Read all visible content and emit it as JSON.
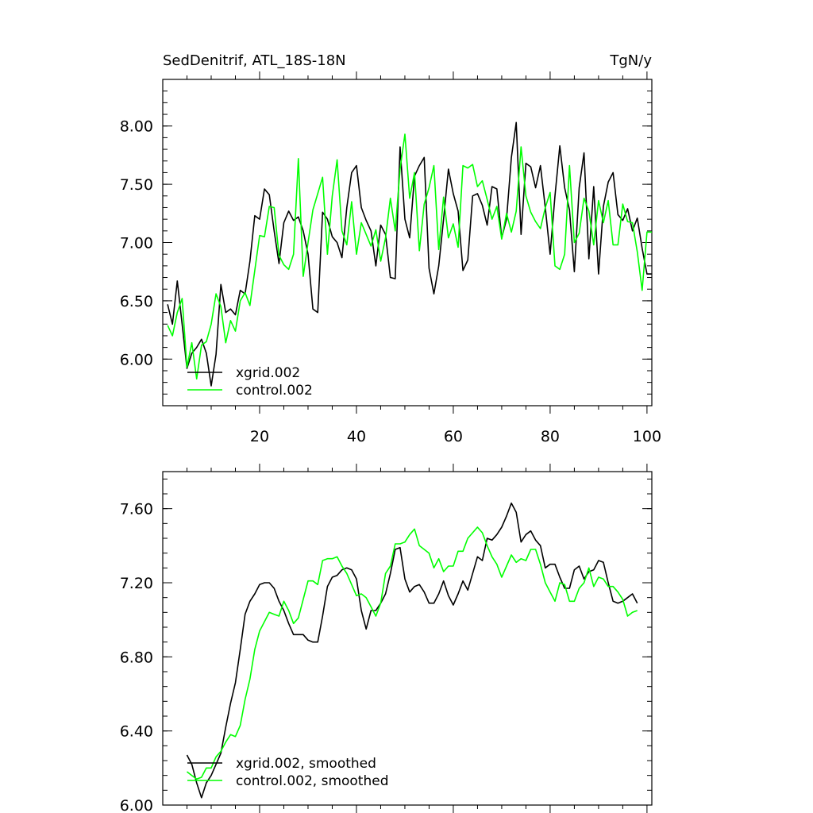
{
  "chart_data": [
    {
      "type": "line",
      "title": "SedDenitrif, ATL_18S-18N",
      "units": "TgN/y",
      "xlim": [
        0,
        101
      ],
      "ylim": [
        5.6,
        8.4
      ],
      "xticks": [
        20,
        40,
        60,
        80,
        100
      ],
      "xtick_labels": [
        "20",
        "40",
        "60",
        "80",
        "100"
      ],
      "yticks": [
        6.0,
        6.5,
        7.0,
        7.5,
        8.0
      ],
      "ytick_labels": [
        "6.00",
        "6.50",
        "7.00",
        "7.50",
        "8.00"
      ],
      "legend_position": "bottom-left",
      "series": [
        {
          "name": "xgrid.002",
          "color": "#000000",
          "x": [
            1,
            2,
            3,
            4,
            5,
            6,
            7,
            8,
            9,
            10,
            11,
            12,
            13,
            14,
            15,
            16,
            17,
            18,
            19,
            20,
            21,
            22,
            23,
            24,
            25,
            26,
            27,
            28,
            29,
            30,
            31,
            32,
            33,
            34,
            35,
            36,
            37,
            38,
            39,
            40,
            41,
            42,
            43,
            44,
            45,
            46,
            47,
            48,
            49,
            50,
            51,
            52,
            53,
            54,
            55,
            56,
            57,
            58,
            59,
            60,
            61,
            62,
            63,
            64,
            65,
            66,
            67,
            68,
            69,
            70,
            71,
            72,
            73,
            74,
            75,
            76,
            77,
            78,
            79,
            80,
            81,
            82,
            83,
            84,
            85,
            86,
            87,
            88,
            89,
            90,
            91,
            92,
            93,
            94,
            95,
            96,
            97,
            98,
            99,
            100,
            101
          ],
          "y": [
            6.47,
            6.3,
            6.67,
            6.3,
            5.92,
            6.05,
            6.1,
            6.17,
            6.05,
            5.77,
            6.04,
            6.64,
            6.4,
            6.43,
            6.38,
            6.59,
            6.56,
            6.84,
            7.23,
            7.2,
            7.46,
            7.41,
            7.1,
            6.82,
            7.17,
            7.27,
            7.19,
            7.22,
            7.1,
            6.9,
            6.43,
            6.4,
            7.26,
            7.2,
            7.05,
            7.0,
            6.87,
            7.3,
            7.6,
            7.66,
            7.3,
            7.19,
            7.1,
            6.8,
            7.15,
            7.07,
            6.7,
            6.69,
            7.82,
            7.2,
            7.04,
            7.57,
            7.66,
            7.73,
            6.78,
            6.56,
            6.8,
            7.2,
            7.63,
            7.42,
            7.27,
            6.76,
            6.85,
            7.4,
            7.42,
            7.32,
            7.15,
            7.48,
            7.46,
            7.04,
            7.2,
            7.73,
            8.03,
            7.07,
            7.68,
            7.65,
            7.47,
            7.66,
            7.3,
            6.9,
            7.4,
            7.83,
            7.47,
            7.28,
            6.75,
            7.47,
            7.77,
            6.86,
            7.48,
            6.73,
            7.31,
            7.52,
            7.6,
            7.24,
            7.19,
            7.29,
            7.1,
            7.21,
            6.95,
            6.73,
            6.73
          ]
        },
        {
          "name": "control.002",
          "color": "#00ff00",
          "x": [
            1,
            2,
            3,
            4,
            5,
            6,
            7,
            8,
            9,
            10,
            11,
            12,
            13,
            14,
            15,
            16,
            17,
            18,
            19,
            20,
            21,
            22,
            23,
            24,
            25,
            26,
            27,
            28,
            29,
            30,
            31,
            32,
            33,
            34,
            35,
            36,
            37,
            38,
            39,
            40,
            41,
            42,
            43,
            44,
            45,
            46,
            47,
            48,
            49,
            50,
            51,
            52,
            53,
            54,
            55,
            56,
            57,
            58,
            59,
            60,
            61,
            62,
            63,
            64,
            65,
            66,
            67,
            68,
            69,
            70,
            71,
            72,
            73,
            74,
            75,
            76,
            77,
            78,
            79,
            80,
            81,
            82,
            83,
            84,
            85,
            86,
            87,
            88,
            89,
            90,
            91,
            92,
            93,
            94,
            95,
            96,
            97,
            98,
            99,
            100,
            101
          ],
          "y": [
            6.29,
            6.2,
            6.4,
            6.52,
            5.93,
            6.14,
            5.83,
            6.12,
            6.15,
            6.3,
            6.56,
            6.45,
            6.14,
            6.33,
            6.24,
            6.5,
            6.57,
            6.46,
            6.76,
            7.06,
            7.05,
            7.31,
            7.3,
            6.89,
            6.81,
            6.77,
            6.9,
            7.72,
            6.71,
            7.0,
            7.28,
            7.42,
            7.56,
            6.9,
            7.4,
            7.71,
            7.1,
            6.98,
            7.35,
            6.9,
            7.17,
            7.07,
            6.97,
            7.11,
            6.84,
            7.04,
            7.38,
            7.1,
            7.63,
            7.93,
            7.38,
            7.6,
            6.93,
            7.33,
            7.47,
            7.66,
            6.94,
            7.39,
            7.04,
            7.16,
            6.96,
            7.66,
            7.64,
            7.67,
            7.48,
            7.53,
            7.37,
            7.2,
            7.31,
            7.03,
            7.25,
            7.09,
            7.27,
            7.82,
            7.4,
            7.26,
            7.18,
            7.12,
            7.3,
            7.43,
            6.8,
            6.77,
            6.9,
            7.66,
            7.0,
            7.08,
            7.38,
            7.27,
            6.98,
            7.36,
            7.17,
            7.36,
            6.98,
            6.98,
            7.33,
            7.18,
            7.17,
            6.92,
            6.59,
            7.09,
            7.09
          ]
        }
      ],
      "legend_labels": [
        "xgrid.002",
        "control.002"
      ]
    },
    {
      "type": "line",
      "title": "",
      "xlim": [
        0,
        101
      ],
      "ylim": [
        6.0,
        7.8
      ],
      "xticks": [
        20,
        40,
        60,
        80,
        100
      ],
      "yticks": [
        6.0,
        6.4,
        6.8,
        7.2,
        7.6
      ],
      "ytick_labels": [
        "6.00",
        "6.40",
        "6.80",
        "7.20",
        "7.60"
      ],
      "legend_position": "bottom-left",
      "series": [
        {
          "name": "xgrid.002, smoothed",
          "color": "#000000",
          "x": [
            5,
            6,
            7,
            8,
            9,
            10,
            11,
            12,
            13,
            14,
            15,
            16,
            17,
            18,
            19,
            20,
            21,
            22,
            23,
            24,
            25,
            26,
            27,
            28,
            29,
            30,
            31,
            32,
            33,
            34,
            35,
            36,
            37,
            38,
            39,
            40,
            41,
            42,
            43,
            44,
            45,
            46,
            47,
            48,
            49,
            50,
            51,
            52,
            53,
            54,
            55,
            56,
            57,
            58,
            59,
            60,
            61,
            62,
            63,
            64,
            65,
            66,
            67,
            68,
            69,
            70,
            71,
            72,
            73,
            74,
            75,
            76,
            77,
            78,
            79,
            80,
            81,
            82,
            83,
            84,
            85,
            86,
            87,
            88,
            89,
            90,
            91,
            92,
            93,
            94,
            95,
            96,
            97,
            98
          ],
          "y": [
            6.27,
            6.22,
            6.12,
            6.04,
            6.12,
            6.16,
            6.22,
            6.28,
            6.42,
            6.55,
            6.66,
            6.84,
            7.03,
            7.1,
            7.14,
            7.19,
            7.2,
            7.2,
            7.17,
            7.1,
            7.05,
            6.98,
            6.92,
            6.92,
            6.92,
            6.89,
            6.88,
            6.88,
            7.02,
            7.18,
            7.23,
            7.24,
            7.27,
            7.28,
            7.27,
            7.22,
            7.05,
            6.95,
            7.05,
            7.05,
            7.09,
            7.14,
            7.25,
            7.38,
            7.39,
            7.22,
            7.15,
            7.18,
            7.19,
            7.15,
            7.09,
            7.09,
            7.14,
            7.21,
            7.13,
            7.08,
            7.14,
            7.21,
            7.16,
            7.25,
            7.34,
            7.32,
            7.44,
            7.43,
            7.46,
            7.5,
            7.56,
            7.63,
            7.58,
            7.42,
            7.46,
            7.48,
            7.43,
            7.4,
            7.28,
            7.3,
            7.3,
            7.23,
            7.17,
            7.17,
            7.27,
            7.29,
            7.22,
            7.26,
            7.27,
            7.32,
            7.31,
            7.2,
            7.1,
            7.09,
            7.1,
            7.12,
            7.14,
            7.09
          ]
        },
        {
          "name": "control.002, smoothed",
          "color": "#00ff00",
          "x": [
            5,
            6,
            7,
            8,
            9,
            10,
            11,
            12,
            13,
            14,
            15,
            16,
            17,
            18,
            19,
            20,
            21,
            22,
            23,
            24,
            25,
            26,
            27,
            28,
            29,
            30,
            31,
            32,
            33,
            34,
            35,
            36,
            37,
            38,
            39,
            40,
            41,
            42,
            43,
            44,
            45,
            46,
            47,
            48,
            49,
            50,
            51,
            52,
            53,
            54,
            55,
            56,
            57,
            58,
            59,
            60,
            61,
            62,
            63,
            64,
            65,
            66,
            67,
            68,
            69,
            70,
            71,
            72,
            73,
            74,
            75,
            76,
            77,
            78,
            79,
            80,
            81,
            82,
            83,
            84,
            85,
            86,
            87,
            88,
            89,
            90,
            91,
            92,
            93,
            94,
            95,
            96,
            97,
            98
          ],
          "y": [
            6.18,
            6.16,
            6.14,
            6.15,
            6.2,
            6.2,
            6.26,
            6.29,
            6.34,
            6.38,
            6.37,
            6.43,
            6.57,
            6.68,
            6.84,
            6.94,
            6.99,
            7.04,
            7.03,
            7.02,
            7.1,
            7.05,
            6.98,
            7.01,
            7.11,
            7.21,
            7.21,
            7.19,
            7.32,
            7.33,
            7.33,
            7.34,
            7.29,
            7.25,
            7.19,
            7.13,
            7.14,
            7.12,
            7.07,
            7.02,
            7.09,
            7.25,
            7.29,
            7.41,
            7.41,
            7.42,
            7.46,
            7.49,
            7.4,
            7.38,
            7.36,
            7.28,
            7.33,
            7.26,
            7.29,
            7.29,
            7.37,
            7.37,
            7.44,
            7.47,
            7.5,
            7.47,
            7.4,
            7.34,
            7.3,
            7.23,
            7.29,
            7.35,
            7.31,
            7.33,
            7.32,
            7.38,
            7.38,
            7.3,
            7.2,
            7.15,
            7.1,
            7.2,
            7.19,
            7.1,
            7.1,
            7.17,
            7.2,
            7.28,
            7.18,
            7.23,
            7.22,
            7.18,
            7.18,
            7.15,
            7.11,
            7.02,
            7.04,
            7.05
          ]
        }
      ],
      "legend_labels": [
        "xgrid.002, smoothed",
        "control.002, smoothed"
      ]
    }
  ]
}
